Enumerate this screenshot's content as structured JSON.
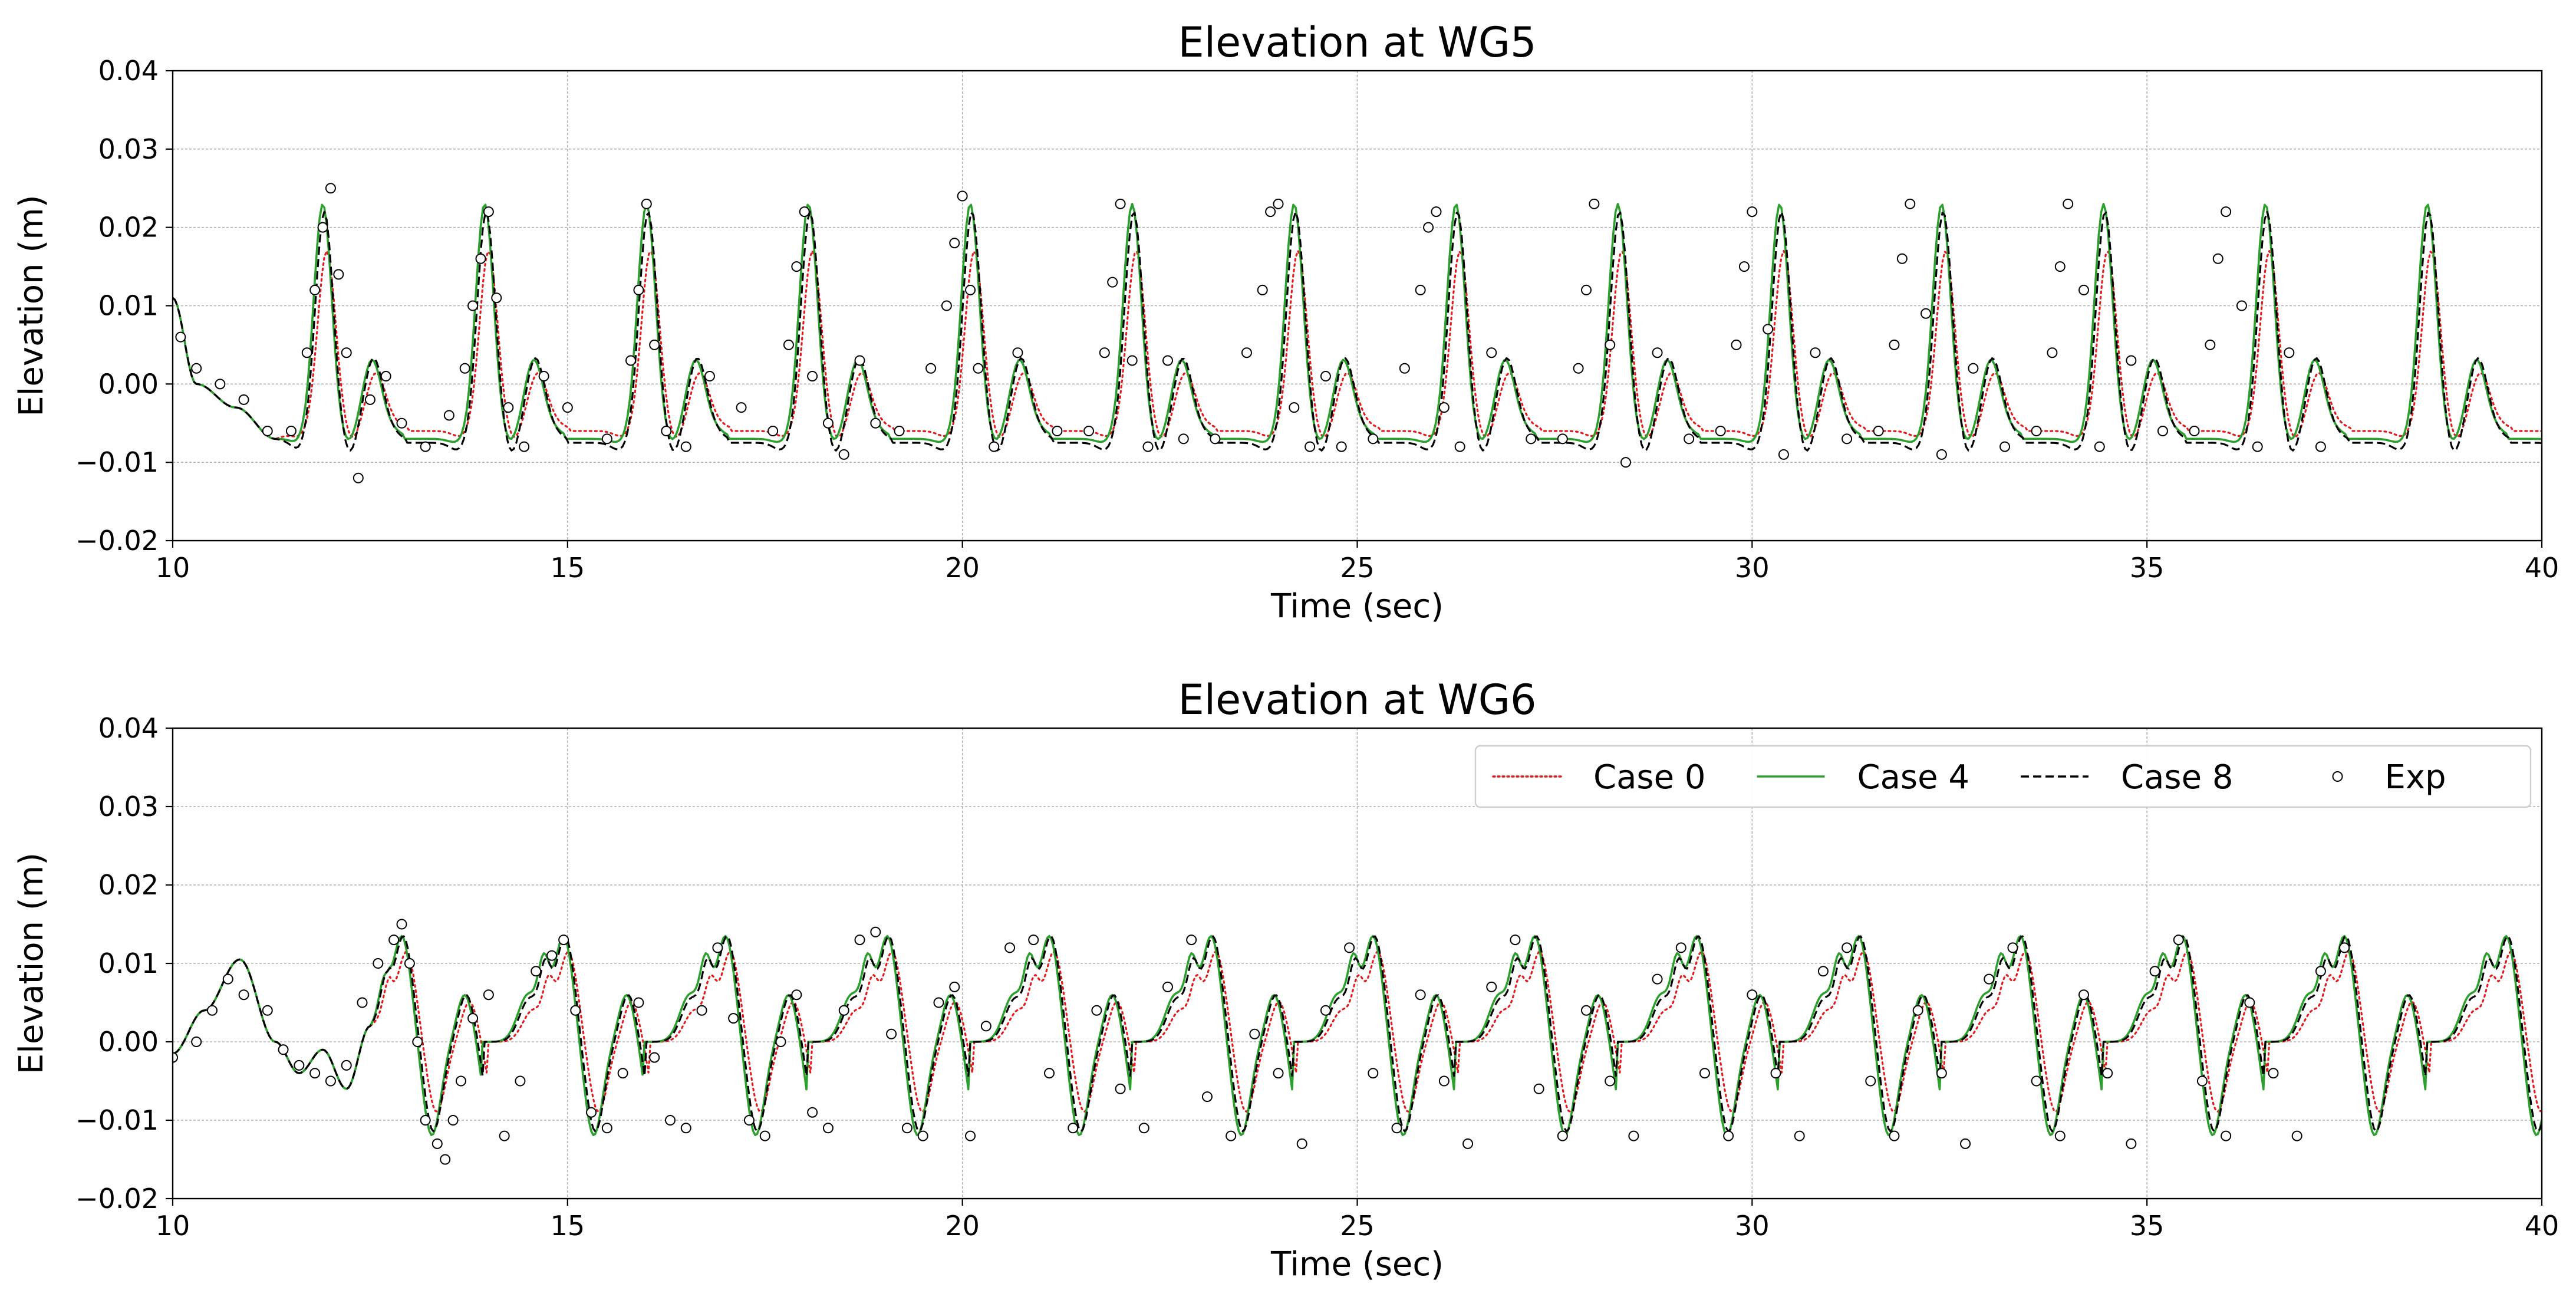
{
  "chart_data": [
    {
      "type": "line",
      "title": "Elevation at WG5",
      "xlabel": "Time (sec)",
      "ylabel": "Elevation (m)",
      "xlim": [
        10,
        40
      ],
      "ylim": [
        -0.02,
        0.04
      ],
      "xticks": [
        10,
        15,
        20,
        25,
        30,
        35,
        40
      ],
      "yticks": [
        -0.02,
        -0.01,
        0.0,
        0.01,
        0.02,
        0.03,
        0.04
      ],
      "xtick_labels": [
        "10",
        "15",
        "20",
        "25",
        "30",
        "35",
        "40"
      ],
      "ytick_labels": [
        "−0.02",
        "−0.01",
        "0.00",
        "0.01",
        "0.02",
        "0.03",
        "0.04"
      ],
      "grid": true,
      "legend": null,
      "series_model": {
        "t0": 10,
        "t1": 40,
        "step": 0.03,
        "period": 2.05,
        "first_peak": 11.9,
        "cases": {
          "Case 0": {
            "amp": 0.017,
            "trough1": -0.0075,
            "sub_amp": 0.0012,
            "sub_mean": -0.002,
            "base": -0.006,
            "lag": 0.05
          },
          "Case 4": {
            "amp": 0.023,
            "trough1": -0.008,
            "sub_amp": 0.0028,
            "sub_mean": -0.0015,
            "base": -0.007,
            "lag": 0.0
          },
          "Case 8": {
            "amp": 0.022,
            "trough1": -0.0095,
            "sub_amp": 0.003,
            "sub_mean": -0.002,
            "base": -0.0075,
            "lag": 0.02
          }
        },
        "start": [
          [
            10.0,
            0.011
          ],
          [
            10.3,
            0.0
          ],
          [
            10.8,
            -0.003
          ],
          [
            11.3,
            -0.007
          ]
        ]
      },
      "exp_points": {
        "x": [
          10.1,
          10.3,
          10.6,
          10.9,
          11.2,
          11.5,
          11.7,
          11.8,
          11.9,
          12.0,
          12.1,
          12.2,
          12.35,
          12.5,
          12.7,
          12.9,
          13.2,
          13.5,
          13.7,
          13.8,
          13.9,
          14.0,
          14.1,
          14.25,
          14.45,
          14.7,
          15.0,
          15.5,
          15.8,
          15.9,
          16.0,
          16.1,
          16.25,
          16.5,
          16.8,
          17.2,
          17.6,
          17.8,
          17.9,
          18.0,
          18.1,
          18.3,
          18.5,
          18.7,
          18.9,
          19.2,
          19.6,
          19.8,
          19.9,
          20.0,
          20.1,
          20.2,
          20.4,
          20.7,
          21.2,
          21.6,
          21.8,
          21.9,
          22.0,
          22.15,
          22.35,
          22.6,
          22.8,
          23.2,
          23.6,
          23.8,
          23.9,
          24.0,
          24.2,
          24.4,
          24.6,
          24.8,
          25.2,
          25.6,
          25.8,
          25.9,
          26.0,
          26.1,
          26.3,
          26.7,
          27.2,
          27.6,
          27.8,
          27.9,
          28.0,
          28.2,
          28.4,
          28.8,
          29.2,
          29.6,
          29.8,
          29.9,
          30.0,
          30.2,
          30.4,
          30.8,
          31.2,
          31.6,
          31.8,
          31.9,
          32.0,
          32.2,
          32.4,
          32.8,
          33.2,
          33.6,
          33.8,
          33.9,
          34.0,
          34.2,
          34.4,
          34.8,
          35.2,
          35.6,
          35.8,
          35.9,
          36.0,
          36.2,
          36.4,
          36.8,
          37.2
        ],
        "y": [
          0.006,
          0.002,
          0.0,
          -0.002,
          -0.006,
          -0.006,
          0.004,
          0.012,
          0.02,
          0.025,
          0.014,
          0.004,
          -0.012,
          -0.002,
          0.001,
          -0.005,
          -0.008,
          -0.004,
          0.002,
          0.01,
          0.016,
          0.022,
          0.011,
          -0.003,
          -0.008,
          0.001,
          -0.003,
          -0.007,
          0.003,
          0.012,
          0.023,
          0.005,
          -0.006,
          -0.008,
          0.001,
          -0.003,
          -0.006,
          0.005,
          0.015,
          0.022,
          0.001,
          -0.005,
          -0.009,
          0.003,
          -0.005,
          -0.006,
          0.002,
          0.01,
          0.018,
          0.024,
          0.012,
          0.002,
          -0.008,
          0.004,
          -0.006,
          -0.006,
          0.004,
          0.013,
          0.023,
          0.003,
          -0.008,
          0.003,
          -0.007,
          -0.007,
          0.004,
          0.012,
          0.022,
          0.023,
          -0.003,
          -0.008,
          0.001,
          -0.008,
          -0.007,
          0.002,
          0.012,
          0.02,
          0.022,
          -0.003,
          -0.008,
          0.004,
          -0.007,
          -0.007,
          0.002,
          0.012,
          0.023,
          0.005,
          -0.01,
          0.004,
          -0.007,
          -0.006,
          0.005,
          0.015,
          0.022,
          0.007,
          -0.009,
          0.004,
          -0.007,
          -0.006,
          0.005,
          0.016,
          0.023,
          0.009,
          -0.009,
          0.002,
          -0.008,
          -0.006,
          0.004,
          0.015,
          0.023,
          0.012,
          -0.008,
          0.003,
          -0.006,
          -0.006,
          0.005,
          0.016,
          0.022,
          0.01,
          -0.008,
          0.004,
          -0.008
        ]
      }
    },
    {
      "type": "line",
      "title": "Elevation at WG6",
      "xlabel": "Time (sec)",
      "ylabel": "Elevation (m)",
      "xlim": [
        10,
        40
      ],
      "ylim": [
        -0.02,
        0.04
      ],
      "xticks": [
        10,
        15,
        20,
        25,
        30,
        35,
        40
      ],
      "yticks": [
        -0.02,
        -0.01,
        0.0,
        0.01,
        0.02,
        0.03,
        0.04
      ],
      "xtick_labels": [
        "10",
        "15",
        "20",
        "25",
        "30",
        "35",
        "40"
      ],
      "ytick_labels": [
        "−0.02",
        "−0.01",
        "0.00",
        "0.01",
        "0.02",
        "0.03",
        "0.04"
      ],
      "grid": true,
      "legend": {
        "placement": "top-right",
        "entries": [
          {
            "label": "Case 0",
            "color": "#e41a1c",
            "style": "dotted"
          },
          {
            "label": "Case 4",
            "color": "#2ca02c",
            "style": "solid"
          },
          {
            "label": "Case 8",
            "color": "#000000",
            "style": "dashed"
          },
          {
            "label": "Exp",
            "color": "#000000",
            "style": "marker"
          }
        ]
      },
      "series_model": {
        "t0": 10,
        "t1": 40,
        "step": 0.025,
        "period": 2.05,
        "first_peak": 12.9,
        "cases": {
          "Case 0": {
            "amp": 0.0115,
            "trough": -0.009,
            "mid": 0.004,
            "lag": 0.06
          },
          "Case 4": {
            "amp": 0.0135,
            "trough": -0.012,
            "mid": 0.006,
            "lag": 0.0
          },
          "Case 8": {
            "amp": 0.0135,
            "trough": -0.0115,
            "mid": 0.0055,
            "lag": 0.02
          }
        },
        "start": [
          [
            10.0,
            -0.0015
          ],
          [
            10.4,
            0.004
          ],
          [
            10.85,
            0.0105
          ],
          [
            11.3,
            0.0
          ],
          [
            11.6,
            -0.004
          ],
          [
            11.9,
            -0.001
          ],
          [
            12.2,
            -0.006
          ],
          [
            12.5,
            0.002
          ]
        ]
      },
      "exp_points": {
        "x": [
          10.0,
          10.3,
          10.5,
          10.7,
          10.9,
          11.2,
          11.4,
          11.6,
          11.8,
          12.0,
          12.2,
          12.4,
          12.6,
          12.8,
          12.9,
          13.0,
          13.1,
          13.2,
          13.35,
          13.45,
          13.55,
          13.65,
          13.8,
          14.0,
          14.2,
          14.4,
          14.6,
          14.8,
          14.95,
          15.1,
          15.3,
          15.5,
          15.7,
          15.9,
          16.1,
          16.3,
          16.5,
          16.7,
          16.9,
          17.1,
          17.3,
          17.5,
          17.7,
          17.9,
          18.1,
          18.3,
          18.5,
          18.7,
          18.9,
          19.1,
          19.3,
          19.5,
          19.7,
          19.9,
          20.1,
          20.3,
          20.6,
          20.9,
          21.1,
          21.4,
          21.7,
          22.0,
          22.3,
          22.6,
          22.9,
          23.1,
          23.4,
          23.7,
          24.0,
          24.3,
          24.6,
          24.9,
          25.2,
          25.5,
          25.8,
          26.1,
          26.4,
          26.7,
          27.0,
          27.3,
          27.6,
          27.9,
          28.2,
          28.5,
          28.8,
          29.1,
          29.4,
          29.7,
          30.0,
          30.3,
          30.6,
          30.9,
          31.2,
          31.5,
          31.8,
          32.1,
          32.4,
          32.7,
          33.0,
          33.3,
          33.6,
          33.9,
          34.2,
          34.5,
          34.8,
          35.1,
          35.4,
          35.7,
          36.0,
          36.3,
          36.6,
          36.9,
          37.2,
          37.5
        ],
        "y": [
          -0.002,
          0.0,
          0.004,
          0.008,
          0.006,
          0.004,
          -0.001,
          -0.003,
          -0.004,
          -0.005,
          -0.003,
          0.005,
          0.01,
          0.013,
          0.015,
          0.01,
          0.0,
          -0.01,
          -0.013,
          -0.015,
          -0.01,
          -0.005,
          0.003,
          0.006,
          -0.012,
          -0.005,
          0.009,
          0.011,
          0.013,
          0.004,
          -0.009,
          -0.011,
          -0.004,
          0.005,
          -0.002,
          -0.01,
          -0.011,
          0.004,
          0.012,
          0.003,
          -0.01,
          -0.012,
          0.0,
          0.006,
          -0.009,
          -0.011,
          0.004,
          0.013,
          0.014,
          0.001,
          -0.011,
          -0.012,
          0.005,
          0.007,
          -0.012,
          0.002,
          0.012,
          0.013,
          -0.004,
          -0.011,
          0.004,
          -0.006,
          -0.011,
          0.007,
          0.013,
          -0.007,
          -0.012,
          0.001,
          -0.004,
          -0.013,
          0.004,
          0.012,
          -0.004,
          -0.011,
          0.006,
          -0.005,
          -0.013,
          0.007,
          0.013,
          -0.006,
          -0.012,
          0.004,
          -0.005,
          -0.012,
          0.008,
          0.012,
          -0.004,
          -0.012,
          0.006,
          -0.004,
          -0.012,
          0.009,
          0.012,
          -0.005,
          -0.012,
          0.004,
          -0.004,
          -0.013,
          0.008,
          0.012,
          -0.005,
          -0.012,
          0.006,
          -0.004,
          -0.013,
          0.009,
          0.013,
          -0.005,
          -0.012,
          0.005,
          -0.004,
          -0.012,
          0.009,
          0.012
        ]
      }
    }
  ],
  "colors": {
    "case0": "#e41a1c",
    "case4": "#2ca02c",
    "case8": "#000000",
    "exp": "#000000",
    "grid": "#b0b0b0"
  }
}
